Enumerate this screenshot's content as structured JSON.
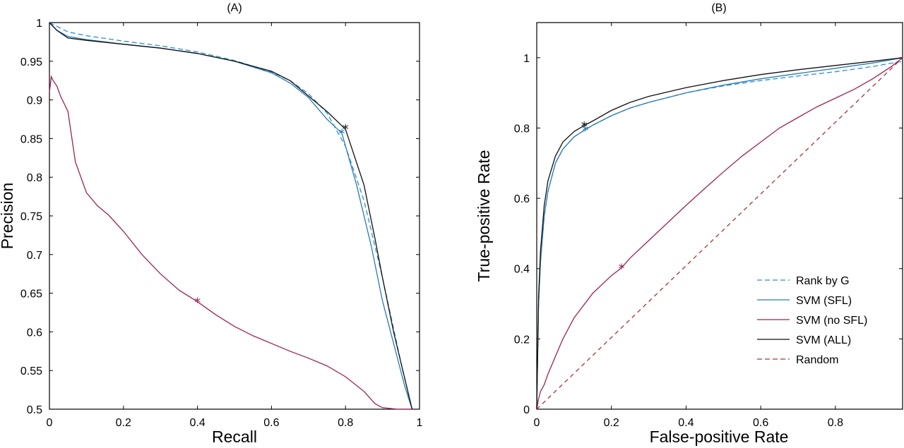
{
  "colors": {
    "rank": "#2d8fd0",
    "svm_sfl": "#2a7ab7",
    "svm_nosfl": "#9b2356",
    "svm_all": "#111111",
    "random": "#a33535"
  },
  "chart_data": [
    {
      "type": "line",
      "title": "(A)",
      "xlabel": "Recall",
      "ylabel": "Precision",
      "xlim": [
        0,
        1
      ],
      "ylim": [
        0.5,
        1
      ],
      "xticks": [
        0,
        0.2,
        0.4,
        0.6,
        0.8,
        1
      ],
      "xtick_labels": [
        "0",
        "0.2",
        "0.4",
        "0.6",
        "0.8",
        "1"
      ],
      "yticks": [
        0.5,
        0.55,
        0.6,
        0.65,
        0.7,
        0.75,
        0.8,
        0.85,
        0.9,
        0.95,
        1
      ],
      "ytick_labels": [
        "0.5",
        "0.55",
        "0.6",
        "0.65",
        "0.7",
        "0.75",
        "0.8",
        "0.85",
        "0.9",
        "0.95",
        "1"
      ],
      "grid": false,
      "series": [
        {
          "key": "rank",
          "style": "dashed",
          "x": [
            0,
            0.05,
            0.1,
            0.2,
            0.3,
            0.4,
            0.5,
            0.6,
            0.65,
            0.7,
            0.75,
            0.8,
            0.85,
            0.9,
            0.95,
            0.98
          ],
          "y": [
            1.0,
            0.988,
            0.983,
            0.976,
            0.97,
            0.962,
            0.951,
            0.936,
            0.925,
            0.908,
            0.883,
            0.84,
            0.77,
            0.67,
            0.56,
            0.5
          ]
        },
        {
          "key": "svm_sfl",
          "style": "solid",
          "x": [
            0,
            0.02,
            0.05,
            0.1,
            0.2,
            0.3,
            0.4,
            0.5,
            0.6,
            0.65,
            0.7,
            0.75,
            0.79,
            0.83,
            0.87,
            0.9,
            0.93,
            0.96,
            0.98
          ],
          "y": [
            1.0,
            0.99,
            0.982,
            0.978,
            0.972,
            0.967,
            0.96,
            0.95,
            0.935,
            0.922,
            0.903,
            0.875,
            0.857,
            0.79,
            0.71,
            0.64,
            0.585,
            0.53,
            0.5
          ],
          "marker": [
            0.79,
            0.857
          ]
        },
        {
          "key": "svm_nosfl",
          "style": "solid",
          "x": [
            0,
            0.005,
            0.01,
            0.02,
            0.03,
            0.05,
            0.07,
            0.1,
            0.13,
            0.16,
            0.2,
            0.25,
            0.3,
            0.35,
            0.4,
            0.45,
            0.5,
            0.55,
            0.6,
            0.65,
            0.7,
            0.75,
            0.8,
            0.85,
            0.88,
            0.9,
            0.94,
            0.98
          ],
          "y": [
            0.91,
            0.93,
            0.925,
            0.918,
            0.905,
            0.885,
            0.82,
            0.78,
            0.763,
            0.751,
            0.73,
            0.7,
            0.675,
            0.654,
            0.639,
            0.622,
            0.607,
            0.595,
            0.585,
            0.575,
            0.566,
            0.556,
            0.542,
            0.523,
            0.507,
            0.502,
            0.5,
            0.5
          ],
          "marker": [
            0.4,
            0.639
          ]
        },
        {
          "key": "svm_all",
          "style": "solid",
          "x": [
            0,
            0.02,
            0.05,
            0.1,
            0.2,
            0.3,
            0.4,
            0.5,
            0.6,
            0.65,
            0.7,
            0.75,
            0.8,
            0.85,
            0.88,
            0.9,
            0.93,
            0.96,
            0.98
          ],
          "y": [
            1.0,
            0.99,
            0.98,
            0.977,
            0.972,
            0.967,
            0.96,
            0.95,
            0.937,
            0.925,
            0.905,
            0.885,
            0.862,
            0.79,
            0.72,
            0.67,
            0.6,
            0.54,
            0.5
          ],
          "marker": [
            0.8,
            0.863
          ]
        }
      ]
    },
    {
      "type": "line",
      "title": "(B)",
      "xlabel": "False-positive Rate",
      "ylabel": "True-positive Rate",
      "xlim": [
        0,
        0.98
      ],
      "ylim": [
        0,
        1.1
      ],
      "xticks": [
        0,
        0.2,
        0.4,
        0.6,
        0.8
      ],
      "xtick_labels": [
        "0",
        "0.2",
        "0.4",
        "0.6",
        "0.8"
      ],
      "yticks": [
        0,
        0.2,
        0.4,
        0.6,
        0.8,
        1
      ],
      "ytick_labels": [
        "0",
        "0.2",
        "0.4",
        "0.6",
        "0.8",
        "1"
      ],
      "grid": false,
      "legend_position": "bottom-right",
      "series": [
        {
          "key": "rank",
          "style": "dashed",
          "x": [
            0,
            0.005,
            0.01,
            0.02,
            0.03,
            0.05,
            0.07,
            0.1,
            0.13,
            0.15,
            0.2,
            0.25,
            0.3,
            0.4,
            0.5,
            0.6,
            0.7,
            0.8,
            0.9,
            0.98
          ],
          "y": [
            0,
            0.3,
            0.42,
            0.55,
            0.62,
            0.7,
            0.74,
            0.775,
            0.795,
            0.808,
            0.835,
            0.857,
            0.873,
            0.9,
            0.92,
            0.935,
            0.948,
            0.96,
            0.975,
            0.99
          ]
        },
        {
          "key": "svm_sfl",
          "style": "solid",
          "x": [
            0,
            0.005,
            0.01,
            0.02,
            0.03,
            0.05,
            0.07,
            0.1,
            0.13,
            0.15,
            0.2,
            0.25,
            0.3,
            0.4,
            0.5,
            0.6,
            0.7,
            0.8,
            0.9,
            0.98
          ],
          "y": [
            0,
            0.3,
            0.42,
            0.55,
            0.62,
            0.7,
            0.74,
            0.775,
            0.795,
            0.808,
            0.835,
            0.857,
            0.873,
            0.9,
            0.922,
            0.94,
            0.955,
            0.97,
            0.985,
            1.0
          ],
          "marker": [
            0.13,
            0.795
          ]
        },
        {
          "key": "svm_nosfl",
          "style": "solid",
          "x": [
            0,
            0.005,
            0.01,
            0.02,
            0.03,
            0.05,
            0.07,
            0.1,
            0.15,
            0.2,
            0.227,
            0.25,
            0.3,
            0.35,
            0.4,
            0.45,
            0.5,
            0.55,
            0.6,
            0.65,
            0.7,
            0.75,
            0.8,
            0.85,
            0.9,
            0.95,
            0.98
          ],
          "y": [
            0,
            0.03,
            0.05,
            0.07,
            0.1,
            0.15,
            0.2,
            0.26,
            0.33,
            0.38,
            0.402,
            0.43,
            0.48,
            0.53,
            0.58,
            0.628,
            0.675,
            0.72,
            0.76,
            0.8,
            0.83,
            0.86,
            0.885,
            0.91,
            0.94,
            0.975,
            1.0
          ],
          "marker": [
            0.227,
            0.402
          ]
        },
        {
          "key": "svm_all",
          "style": "solid",
          "x": [
            0,
            0.005,
            0.01,
            0.02,
            0.03,
            0.05,
            0.07,
            0.1,
            0.127,
            0.15,
            0.2,
            0.25,
            0.3,
            0.4,
            0.5,
            0.6,
            0.7,
            0.8,
            0.9,
            0.98
          ],
          "y": [
            0,
            0.32,
            0.45,
            0.58,
            0.65,
            0.72,
            0.76,
            0.79,
            0.807,
            0.82,
            0.85,
            0.873,
            0.89,
            0.915,
            0.935,
            0.952,
            0.966,
            0.978,
            0.99,
            1.0
          ],
          "marker": [
            0.127,
            0.807
          ]
        },
        {
          "key": "random",
          "style": "dashed",
          "x": [
            0,
            0.98
          ],
          "y": [
            0,
            1.0
          ]
        }
      ],
      "legend": [
        {
          "key": "rank",
          "label": "Rank by G",
          "style": "dashed"
        },
        {
          "key": "svm_sfl",
          "label": "SVM (SFL)",
          "style": "solid"
        },
        {
          "key": "svm_nosfl",
          "label": "SVM (no SFL)",
          "style": "solid"
        },
        {
          "key": "svm_all",
          "label": "SVM (ALL)",
          "style": "solid"
        },
        {
          "key": "random",
          "label": "Random",
          "style": "dashed"
        }
      ]
    }
  ]
}
